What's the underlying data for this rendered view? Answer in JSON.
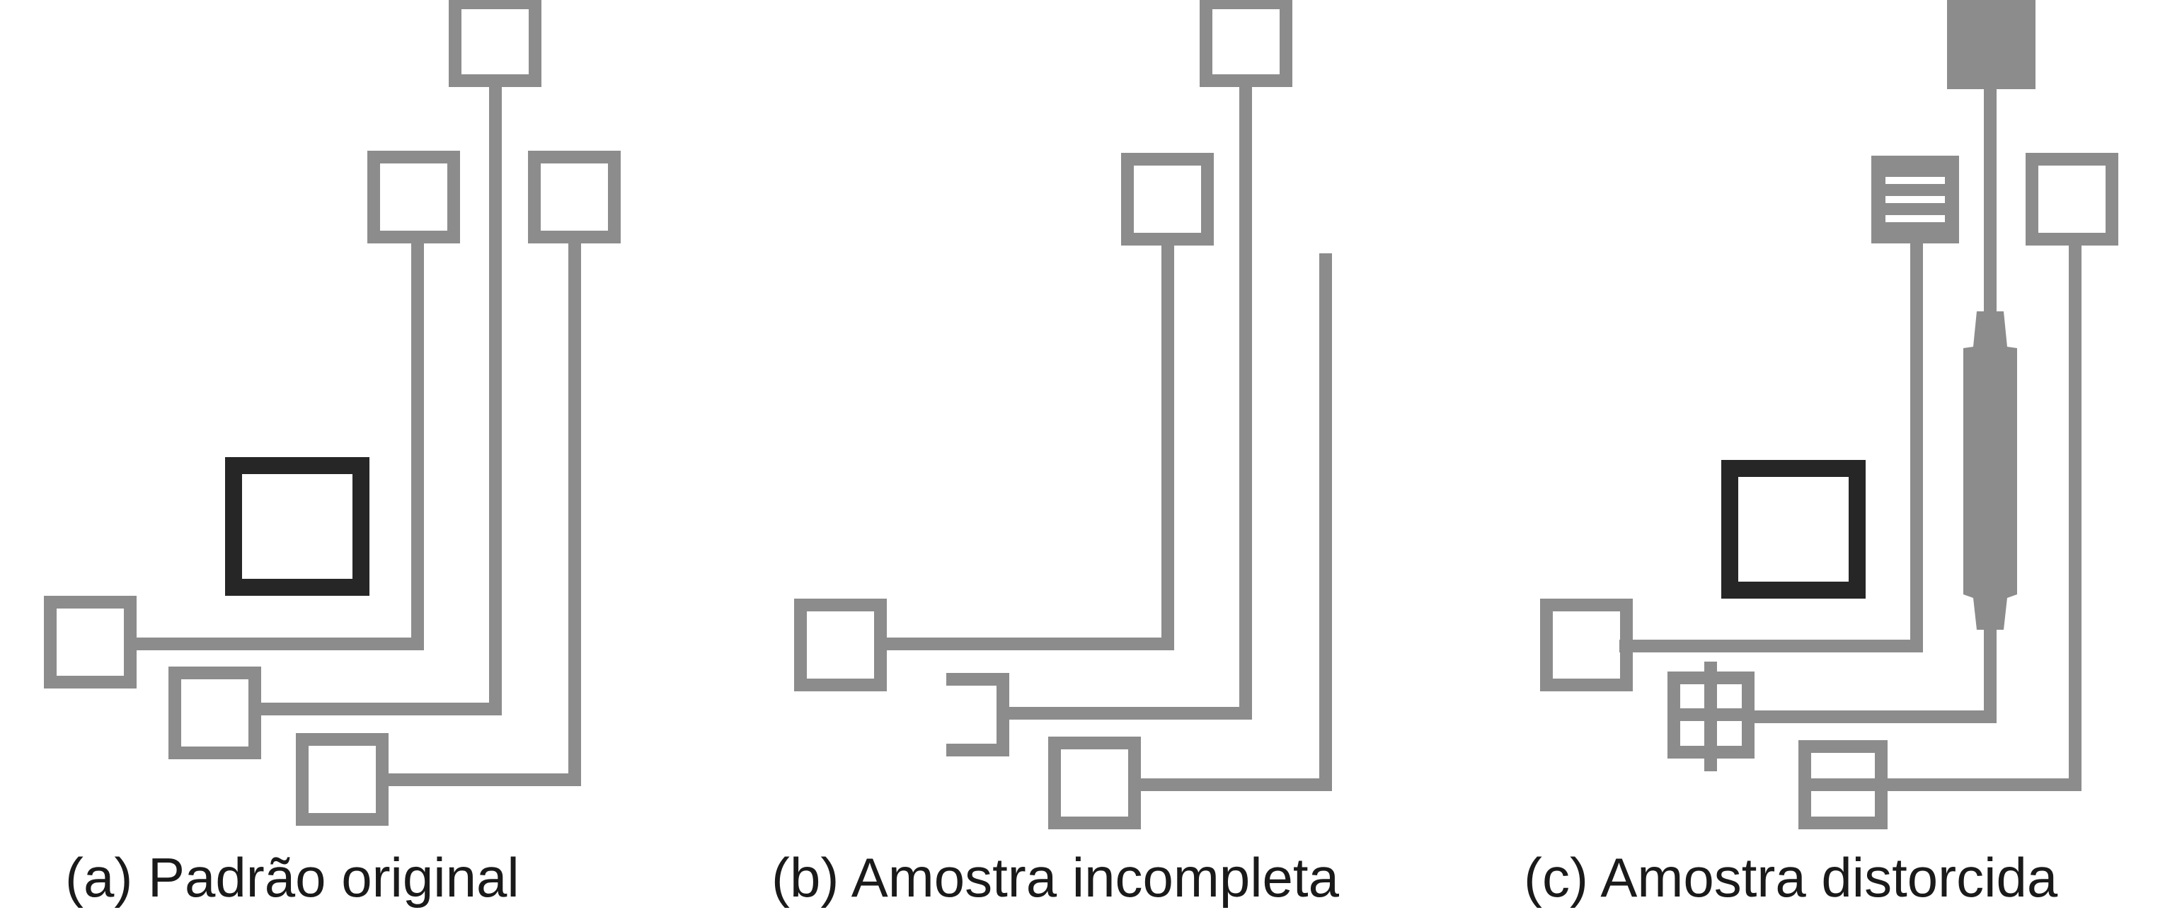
{
  "panels": [
    {
      "id": "a",
      "caption": "(a) Padrão original"
    },
    {
      "id": "b",
      "caption": "(b) Amostra incompleta"
    },
    {
      "id": "c",
      "caption": "(c) Amostra distorcida"
    }
  ],
  "colors": {
    "trace": "#8c8c8c",
    "chip": "#262626",
    "background": "#ffffff"
  }
}
